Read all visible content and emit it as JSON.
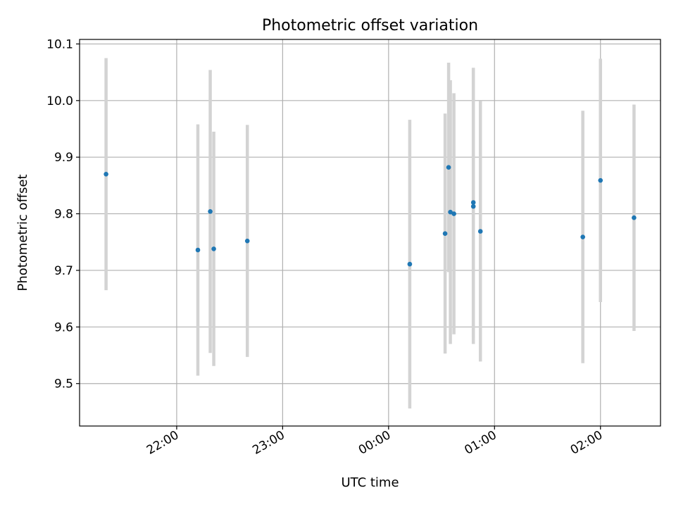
{
  "chart_data": {
    "type": "scatter",
    "title": "Photometric offset variation",
    "xlabel": "UTC time",
    "ylabel": "Photometric offset",
    "x_tick_labels": [
      "22:00",
      "23:00",
      "00:00",
      "01:00",
      "02:00"
    ],
    "x_tick_values": [
      "22:00",
      "23:00",
      "00:00",
      "01:00",
      "02:00"
    ],
    "y_ticks": [
      9.5,
      9.6,
      9.7,
      9.8,
      9.9,
      10.0,
      10.1
    ],
    "y_tick_labels": [
      "9.5",
      "9.6",
      "9.7",
      "9.8",
      "9.9",
      "10.0",
      "10.1"
    ],
    "xlim": [
      "21:05",
      "02:34"
    ],
    "ylim": [
      9.425,
      10.108
    ],
    "grid": true,
    "marker_color": "#1f77b4",
    "errorbar_color": "#d3d3d3",
    "points": [
      {
        "time": "21:20",
        "y": 9.87,
        "err": 0.205
      },
      {
        "time": "22:12",
        "y": 9.736,
        "err": 0.222
      },
      {
        "time": "22:19",
        "y": 9.804,
        "err": 0.25
      },
      {
        "time": "22:21",
        "y": 9.738,
        "err": 0.207
      },
      {
        "time": "22:40",
        "y": 9.752,
        "err": 0.205
      },
      {
        "time": "00:12",
        "y": 9.711,
        "err": 0.255
      },
      {
        "time": "00:32",
        "y": 9.765,
        "err": 0.212
      },
      {
        "time": "00:34",
        "y": 9.882,
        "err": 0.185
      },
      {
        "time": "00:35",
        "y": 9.803,
        "err": 0.233
      },
      {
        "time": "00:37",
        "y": 9.8,
        "err": 0.213
      },
      {
        "time": "00:48",
        "y": 9.82,
        "err": 0.238
      },
      {
        "time": "00:48",
        "y": 9.813,
        "err": 0.243
      },
      {
        "time": "00:52",
        "y": 9.769,
        "err": 0.23
      },
      {
        "time": "01:50",
        "y": 9.759,
        "err": 0.223
      },
      {
        "time": "02:00",
        "y": 9.859,
        "err": 0.215
      },
      {
        "time": "02:19",
        "y": 9.793,
        "err": 0.2
      }
    ]
  }
}
